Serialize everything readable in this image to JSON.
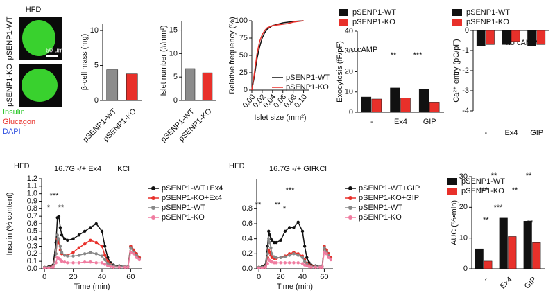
{
  "images": {
    "title": "HFD",
    "rows": [
      "pSENP1-WT",
      "pSENP1-KO"
    ],
    "scale_bar": "50 µm",
    "stains": [
      "Insulin",
      "Glucagon",
      "DAPI"
    ]
  },
  "chart_data": [
    {
      "type": "bar",
      "ylabel": "β-cell mass (mg)",
      "categories": [
        "pSENP1-WT",
        "pSENP1-KO"
      ],
      "values": [
        4.4,
        3.8
      ],
      "colors": [
        "#8c8c8c",
        "#e8302a"
      ],
      "ylim": [
        0,
        11
      ],
      "yticks": [
        0,
        5,
        10
      ]
    },
    {
      "type": "bar",
      "ylabel": "Islet number (#/mm²)",
      "categories": [
        "pSENP1-WT",
        "pSENP1-KO"
      ],
      "values": [
        6.8,
        5.9
      ],
      "colors": [
        "#8c8c8c",
        "#e8302a"
      ],
      "ylim": [
        0,
        17
      ],
      "yticks": [
        0,
        5,
        10,
        15
      ]
    },
    {
      "type": "line",
      "xlabel": "Islet size (mm²)",
      "ylabel": "Relative frequency (%)",
      "x": [
        0,
        0.005,
        0.01,
        0.015,
        0.02,
        0.025,
        0.03,
        0.04,
        0.05,
        0.06,
        0.07,
        0.08,
        0.1
      ],
      "series": [
        {
          "name": "pSENP1-WT",
          "color": "#111111",
          "values": [
            0,
            20,
            45,
            62,
            75,
            83,
            88,
            93,
            95,
            97,
            98,
            99,
            100
          ]
        },
        {
          "name": "pSENP1-KO",
          "color": "#e8302a",
          "values": [
            0,
            25,
            52,
            70,
            80,
            86,
            90,
            93,
            94,
            95,
            96,
            98,
            100
          ]
        }
      ],
      "xlim": [
        0,
        0.11
      ],
      "xticks": [
        {
          "value": 0,
          "label": "0.00"
        },
        {
          "value": 0.02,
          "label": "0.02"
        },
        {
          "value": 0.04,
          "label": "0.04"
        },
        {
          "value": 0.06,
          "label": "0.06"
        },
        {
          "value": 0.08,
          "label": "0.08"
        },
        {
          "value": 0.1,
          "label": "0.10"
        }
      ],
      "ylim": [
        0,
        100
      ],
      "yticks": [
        0,
        25,
        50,
        75,
        100
      ]
    },
    {
      "type": "bar",
      "ylabel": "Exocytosis (fF/pF)",
      "categories": [
        "-",
        "Ex4",
        "GIP"
      ],
      "series": [
        {
          "name": "pSENP1-WT",
          "color": "#111111",
          "values": [
            7.5,
            12,
            11.5
          ]
        },
        {
          "name": "pSENP1-KO",
          "color": "#e8302a",
          "values": [
            6.5,
            7,
            5
          ]
        }
      ],
      "ylim": [
        0,
        40
      ],
      "yticks": [
        0,
        10,
        20,
        30,
        40
      ],
      "annotations": [
        "no cAMP",
        "**",
        "***"
      ]
    },
    {
      "type": "bar",
      "ylabel": "Ca²⁺ entry (pC/pF)",
      "categories": [
        "-",
        "Ex4",
        "GIP"
      ],
      "series": [
        {
          "name": "pSENP1-WT",
          "color": "#111111",
          "values": [
            -0.75,
            -0.7,
            -0.75
          ]
        },
        {
          "name": "pSENP1-KO",
          "color": "#e8302a",
          "values": [
            -0.7,
            -0.55,
            -0.7
          ]
        }
      ],
      "ylim": [
        -4,
        0
      ],
      "yticks": [
        0,
        -1,
        -2,
        -3,
        -4
      ],
      "annotations": [
        "no cAMP"
      ]
    },
    {
      "type": "line",
      "title": "HFD",
      "xlabel": "Time (min)",
      "ylabel": "Insulin (% content)",
      "annotations": [
        "16.7G -/+ Ex4",
        "KCl",
        "***",
        "*",
        "**"
      ],
      "x": [
        0,
        3,
        6,
        8,
        9,
        10,
        11,
        12,
        14,
        16,
        20,
        24,
        28,
        32,
        36,
        40,
        42,
        44,
        46,
        48,
        52,
        56,
        58,
        60,
        62,
        64,
        66
      ],
      "series": [
        {
          "name": "pSENP1-WT+Ex4",
          "color": "#111111",
          "values": [
            0.02,
            0.03,
            0.05,
            0.35,
            0.68,
            0.7,
            0.55,
            0.45,
            0.4,
            0.38,
            0.4,
            0.45,
            0.5,
            0.55,
            0.6,
            0.5,
            0.3,
            0.15,
            0.08,
            0.05,
            0.04,
            0.03,
            0.03,
            0.3,
            0.25,
            0.2,
            0.15
          ]
        },
        {
          "name": "pSENP1-KO+Ex4",
          "color": "#e8302a",
          "values": [
            0.02,
            0.02,
            0.04,
            0.2,
            0.4,
            0.35,
            0.25,
            0.2,
            0.18,
            0.18,
            0.22,
            0.28,
            0.33,
            0.38,
            0.35,
            0.3,
            0.18,
            0.1,
            0.06,
            0.04,
            0.03,
            0.03,
            0.03,
            0.3,
            0.25,
            0.2,
            0.15
          ]
        },
        {
          "name": "pSENP1-WT",
          "color": "#888888",
          "values": [
            0.02,
            0.02,
            0.03,
            0.2,
            0.45,
            0.4,
            0.3,
            0.22,
            0.18,
            0.17,
            0.17,
            0.18,
            0.2,
            0.22,
            0.2,
            0.17,
            0.12,
            0.07,
            0.05,
            0.04,
            0.03,
            0.03,
            0.03,
            0.28,
            0.22,
            0.18,
            0.13
          ]
        },
        {
          "name": "pSENP1-KO",
          "color": "#f07ca0",
          "values": [
            0.01,
            0.01,
            0.02,
            0.08,
            0.15,
            0.14,
            0.12,
            0.1,
            0.09,
            0.08,
            0.08,
            0.08,
            0.09,
            0.09,
            0.08,
            0.08,
            0.06,
            0.04,
            0.03,
            0.02,
            0.02,
            0.02,
            0.02,
            0.22,
            0.2,
            0.15,
            0.12
          ]
        }
      ],
      "xlim": [
        -2,
        68
      ],
      "xticks": [
        0,
        20,
        40,
        60
      ],
      "ylim": [
        0,
        1.2
      ],
      "yticks": [
        {
          "value": 0,
          "label": "0.0"
        },
        {
          "value": 0.1,
          "label": "0.1"
        },
        {
          "value": 0.2,
          "label": "0.2"
        },
        {
          "value": 0.3,
          "label": "0.3"
        },
        {
          "value": 0.4,
          "label": "0.4"
        },
        {
          "value": 0.5,
          "label": "0.5"
        },
        {
          "value": 0.6,
          "label": "0.6"
        },
        {
          "value": 0.7,
          "label": "0.7"
        },
        {
          "value": 0.8,
          "label": "0.8"
        },
        {
          "value": 0.9,
          "label": "0.9"
        },
        {
          "value": 1,
          "label": "1.0"
        },
        {
          "value": 1.1,
          "label": "1.1"
        },
        {
          "value": 1.2,
          "label": "1.2"
        }
      ]
    },
    {
      "type": "line",
      "title": "HFD",
      "xlabel": "Time (min)",
      "annotations": [
        "16.7G -/+ GIP",
        "KCl",
        "**",
        "**",
        "*",
        "***"
      ],
      "x": [
        0,
        3,
        6,
        8,
        9,
        10,
        11,
        12,
        14,
        16,
        20,
        24,
        28,
        32,
        36,
        40,
        42,
        44,
        46,
        48,
        52,
        56,
        58,
        60,
        62,
        64,
        66
      ],
      "series": [
        {
          "name": "pSENP1-WT+GIP",
          "color": "#111111",
          "values": [
            0.02,
            0.03,
            0.05,
            0.3,
            0.5,
            0.45,
            0.4,
            0.38,
            0.35,
            0.35,
            0.38,
            0.5,
            0.55,
            0.55,
            0.62,
            0.5,
            0.3,
            0.15,
            0.08,
            0.05,
            0.04,
            0.03,
            0.03,
            0.3,
            0.25,
            0.2,
            0.15
          ]
        },
        {
          "name": "pSENP1-KO+GIP",
          "color": "#e8302a",
          "values": [
            0.02,
            0.02,
            0.04,
            0.15,
            0.25,
            0.22,
            0.18,
            0.15,
            0.14,
            0.14,
            0.15,
            0.17,
            0.2,
            0.22,
            0.2,
            0.17,
            0.12,
            0.07,
            0.05,
            0.04,
            0.03,
            0.03,
            0.03,
            0.3,
            0.25,
            0.2,
            0.15
          ]
        },
        {
          "name": "pSENP1-WT",
          "color": "#888888",
          "values": [
            0.02,
            0.02,
            0.03,
            0.2,
            0.4,
            0.35,
            0.28,
            0.2,
            0.16,
            0.15,
            0.15,
            0.16,
            0.18,
            0.2,
            0.18,
            0.15,
            0.1,
            0.06,
            0.04,
            0.03,
            0.03,
            0.03,
            0.03,
            0.28,
            0.22,
            0.18,
            0.13
          ]
        },
        {
          "name": "pSENP1-KO",
          "color": "#f07ca0",
          "values": [
            0.01,
            0.01,
            0.02,
            0.07,
            0.12,
            0.11,
            0.1,
            0.09,
            0.08,
            0.08,
            0.08,
            0.08,
            0.08,
            0.08,
            0.08,
            0.07,
            0.05,
            0.04,
            0.03,
            0.02,
            0.02,
            0.02,
            0.02,
            0.22,
            0.2,
            0.15,
            0.12
          ]
        }
      ],
      "xlim": [
        -2,
        68
      ],
      "xticks": [
        0,
        20,
        40,
        60
      ],
      "ylim": [
        0,
        1.2
      ],
      "yticks": [
        {
          "value": 0,
          "label": "0.0"
        },
        {
          "value": 0.2,
          "label": "0.2"
        },
        {
          "value": 0.4,
          "label": "0.4"
        },
        {
          "value": 0.6,
          "label": "0.6"
        },
        {
          "value": 0.8,
          "label": "0.8"
        }
      ]
    },
    {
      "type": "bar",
      "ylabel": "AUC (%•min)",
      "categories": [
        "-",
        "Ex4",
        "GIP"
      ],
      "series": [
        {
          "name": "pSENP1-WT",
          "color": "#111111",
          "values": [
            6.5,
            16.5,
            15.5
          ]
        },
        {
          "name": "pSENP1-KO",
          "color": "#e8302a",
          "values": [
            2.5,
            10.5,
            8.5
          ]
        }
      ],
      "ylim": [
        0,
        30
      ],
      "yticks": [
        0,
        10,
        20,
        30
      ],
      "annotations": [
        "**",
        "***",
        "**",
        "***",
        "**",
        "**",
        "**"
      ]
    }
  ]
}
